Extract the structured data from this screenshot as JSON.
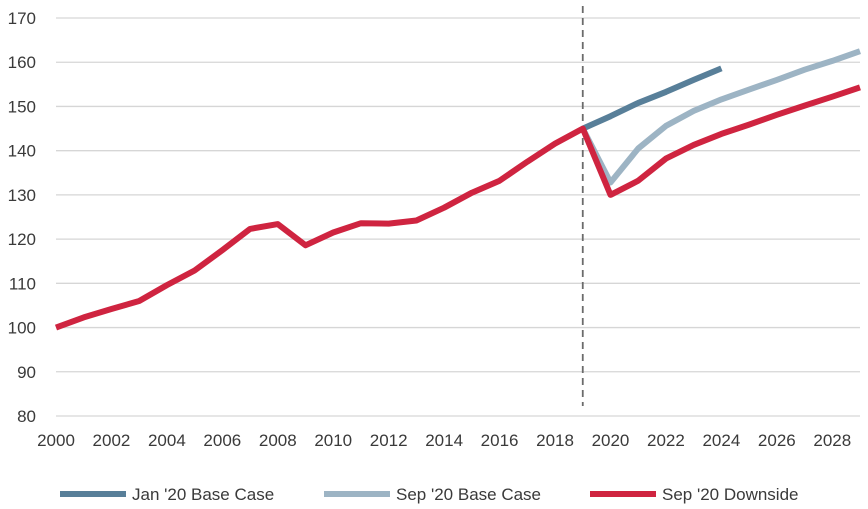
{
  "chart_data": {
    "type": "line",
    "title": "",
    "xlabel": "",
    "ylabel": "",
    "xlim": [
      2000,
      2029
    ],
    "ylim": [
      80,
      170
    ],
    "x_ticks": [
      2000,
      2002,
      2004,
      2006,
      2008,
      2010,
      2012,
      2014,
      2016,
      2018,
      2020,
      2022,
      2024,
      2026,
      2028
    ],
    "x_tick_labels": [
      "2000",
      "2002",
      "2004",
      "2006",
      "2008",
      "2010",
      "2012",
      "2014",
      "2016",
      "2018",
      "2020",
      "2022",
      "2024",
      "2026",
      "2028"
    ],
    "y_ticks": [
      80,
      90,
      100,
      110,
      120,
      130,
      140,
      150,
      160,
      170
    ],
    "y_tick_labels": [
      "80",
      "90",
      "100",
      "110",
      "120",
      "130",
      "140",
      "150",
      "160",
      "170"
    ],
    "grid": "horizontal",
    "vertical_marker": {
      "x": 2019,
      "style": "dashed"
    },
    "legend_position": "bottom",
    "series": [
      {
        "name": "Jan '20 Base Case",
        "color": "#587f99",
        "x": [
          2019,
          2020,
          2021,
          2022,
          2023,
          2024
        ],
        "y": [
          145.0,
          147.8,
          150.8,
          153.3,
          156.0,
          158.6
        ]
      },
      {
        "name": "Sep '20 Base Case",
        "color": "#9db4c4",
        "x": [
          2019,
          2020,
          2021,
          2022,
          2023,
          2024,
          2025,
          2026,
          2027,
          2028,
          2029
        ],
        "y": [
          145.0,
          132.8,
          140.5,
          145.6,
          149.0,
          151.6,
          153.8,
          156.0,
          158.3,
          160.3,
          162.5
        ]
      },
      {
        "name": "Sep '20 Downside",
        "color": "#cf2440",
        "x": [
          2000,
          2001,
          2002,
          2003,
          2004,
          2005,
          2006,
          2007,
          2008,
          2009,
          2010,
          2011,
          2012,
          2013,
          2014,
          2015,
          2016,
          2017,
          2018,
          2019,
          2020,
          2021,
          2022,
          2023,
          2024,
          2025,
          2026,
          2027,
          2028,
          2029
        ],
        "y": [
          100.0,
          102.3,
          104.2,
          106.0,
          109.6,
          112.9,
          117.5,
          122.3,
          123.4,
          118.6,
          121.5,
          123.6,
          123.5,
          124.2,
          127.1,
          130.5,
          133.2,
          137.5,
          141.6,
          145.0,
          130.0,
          133.2,
          138.2,
          141.3,
          143.8,
          145.9,
          148.1,
          150.2,
          152.2,
          154.3
        ]
      }
    ]
  }
}
